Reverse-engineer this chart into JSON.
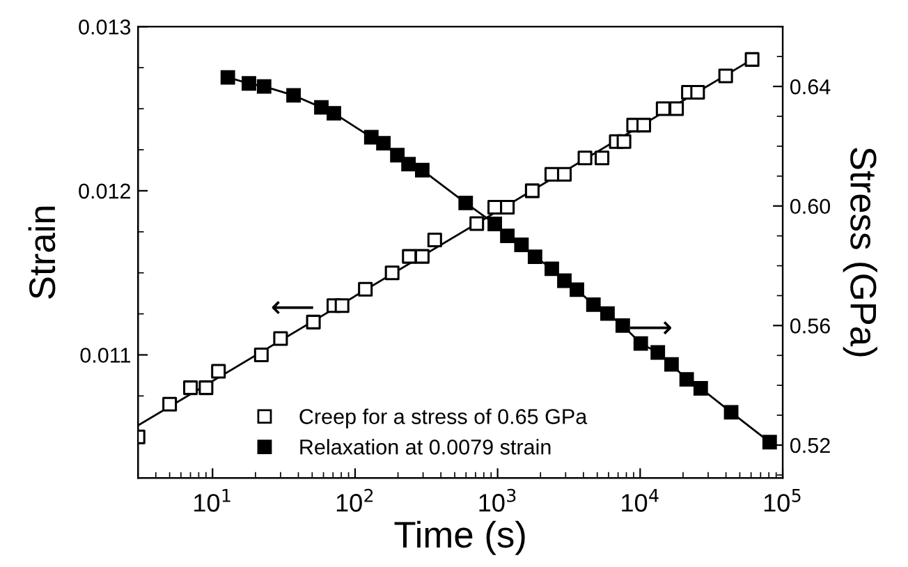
{
  "chart_data": {
    "type": "scatter",
    "xlabel": "Time (s)",
    "ylabel": "Strain",
    "y2label": "Stress (GPa)",
    "log": "x",
    "xlim": [
      3,
      100000
    ],
    "xticks": [
      {
        "value": 10,
        "label": "10$^{1}$"
      },
      {
        "value": 100,
        "label": "10$^{2}$"
      },
      {
        "value": 1000,
        "label": "10$^{3}$"
      },
      {
        "value": 10000,
        "label": "10$^{4}$"
      },
      {
        "value": 100000,
        "label": "10$^{5}$"
      }
    ],
    "ylim": [
      0.01025,
      0.013
    ],
    "yticks": [
      0.011,
      0.012,
      0.013
    ],
    "y2lim": [
      0.509,
      0.66
    ],
    "y2ticks": [
      {
        "value": 0.52,
        "label": "0.52"
      },
      {
        "value": 0.56,
        "label": "0.56"
      },
      {
        "value": 0.6,
        "label": "0.60"
      },
      {
        "value": 0.64,
        "label": "0.64"
      }
    ],
    "legend": "bottom",
    "marker": "square",
    "grid": false,
    "annotations": [
      "⟵",
      "⟶"
    ],
    "series": [
      {
        "name": "Creep for a stress of 0.65 GPa",
        "color": "#000000",
        "x": [
          3,
          5,
          7,
          9,
          11,
          22,
          30,
          51,
          71,
          81,
          118,
          182,
          240,
          296,
          362,
          714,
          955,
          1170,
          1750,
          2400,
          2940,
          4100,
          5400,
          6800,
          7700,
          9000,
          10600,
          14500,
          18000,
          21800,
          25300,
          39800,
          61000
        ],
        "values": [
          0.0105,
          0.0107,
          0.0108,
          0.0108,
          0.0109,
          0.011,
          0.0111,
          0.0112,
          0.0113,
          0.0113,
          0.0114,
          0.0115,
          0.0116,
          0.0116,
          0.0117,
          0.0118,
          0.0119,
          0.0119,
          0.012,
          0.0121,
          0.0121,
          0.0122,
          0.0122,
          0.0123,
          0.0123,
          0.0124,
          0.0124,
          0.0125,
          0.0125,
          0.0126,
          0.0126,
          0.0127,
          0.0128
        ]
      },
      {
        "type": "line",
        "marker": "none",
        "color": "#000000",
        "x": [
          3,
          61000
        ],
        "values": [
          0.01057,
          0.0128
        ]
      },
      {
        "name": "Relaxation at 0.0079 strain",
        "type": "line",
        "axis": "y2",
        "color": "#000000",
        "x": [
          12.8,
          18,
          23,
          37,
          58,
          71,
          130,
          158,
          198,
          237,
          296,
          597,
          955,
          1170,
          1470,
          1830,
          2400,
          2940,
          3600,
          4700,
          5900,
          7550,
          10100,
          13300,
          16600,
          21200,
          26600,
          43500,
          81000
        ],
        "values": [
          0.643,
          0.641,
          0.64,
          0.637,
          0.633,
          0.631,
          0.623,
          0.621,
          0.617,
          0.614,
          0.612,
          0.601,
          0.594,
          0.59,
          0.587,
          0.583,
          0.579,
          0.575,
          0.572,
          0.567,
          0.564,
          0.56,
          0.554,
          0.551,
          0.547,
          0.542,
          0.539,
          0.531,
          0.521
        ]
      }
    ]
  }
}
